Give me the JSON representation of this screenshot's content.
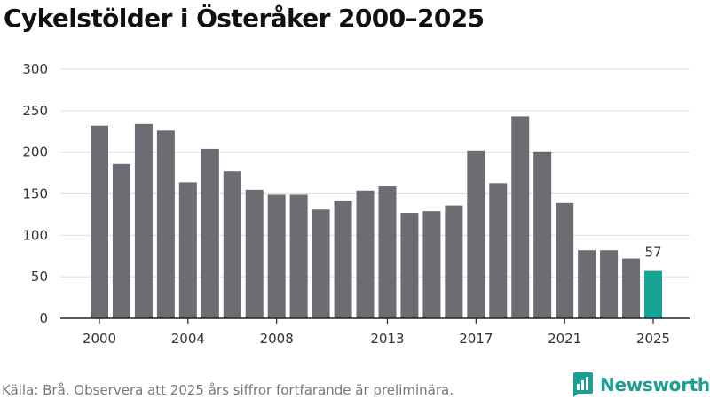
{
  "colors": {
    "bar": "#6d6c72",
    "highlight": "#16a394",
    "grid": "#dddddd",
    "axis": "#222222",
    "brand": "#1a9f92"
  },
  "chart_data": {
    "type": "bar",
    "title": "Cykelstölder i Österåker 2000–2025",
    "categories": [
      "2000",
      "2001",
      "2002",
      "2003",
      "2004",
      "2005",
      "2006",
      "2007",
      "2008",
      "2009",
      "2010",
      "2011",
      "2012",
      "2013",
      "2014",
      "2015",
      "2016",
      "2017",
      "2018",
      "2019",
      "2020",
      "2021",
      "2022",
      "2023",
      "2024",
      "2025"
    ],
    "values": [
      232,
      186,
      234,
      226,
      164,
      204,
      177,
      155,
      149,
      149,
      131,
      141,
      154,
      159,
      127,
      129,
      136,
      202,
      163,
      243,
      201,
      139,
      82,
      82,
      72,
      57
    ],
    "x_tick_labels": [
      "2000",
      "2004",
      "2008",
      "2013",
      "2017",
      "2021",
      "2025"
    ],
    "y_ticks": [
      0,
      50,
      100,
      150,
      200,
      250,
      300
    ],
    "ylim": [
      0,
      300
    ],
    "grid": true,
    "highlight_category": "2025",
    "highlight_label": "57",
    "xlabel": "",
    "ylabel": ""
  },
  "footer": {
    "source": "Källa: Brå. Observera att 2025 års siffror fortfarande är preliminära."
  },
  "brand": {
    "name": "Newsworthy",
    "icon": "newsworthy-logo-icon"
  }
}
